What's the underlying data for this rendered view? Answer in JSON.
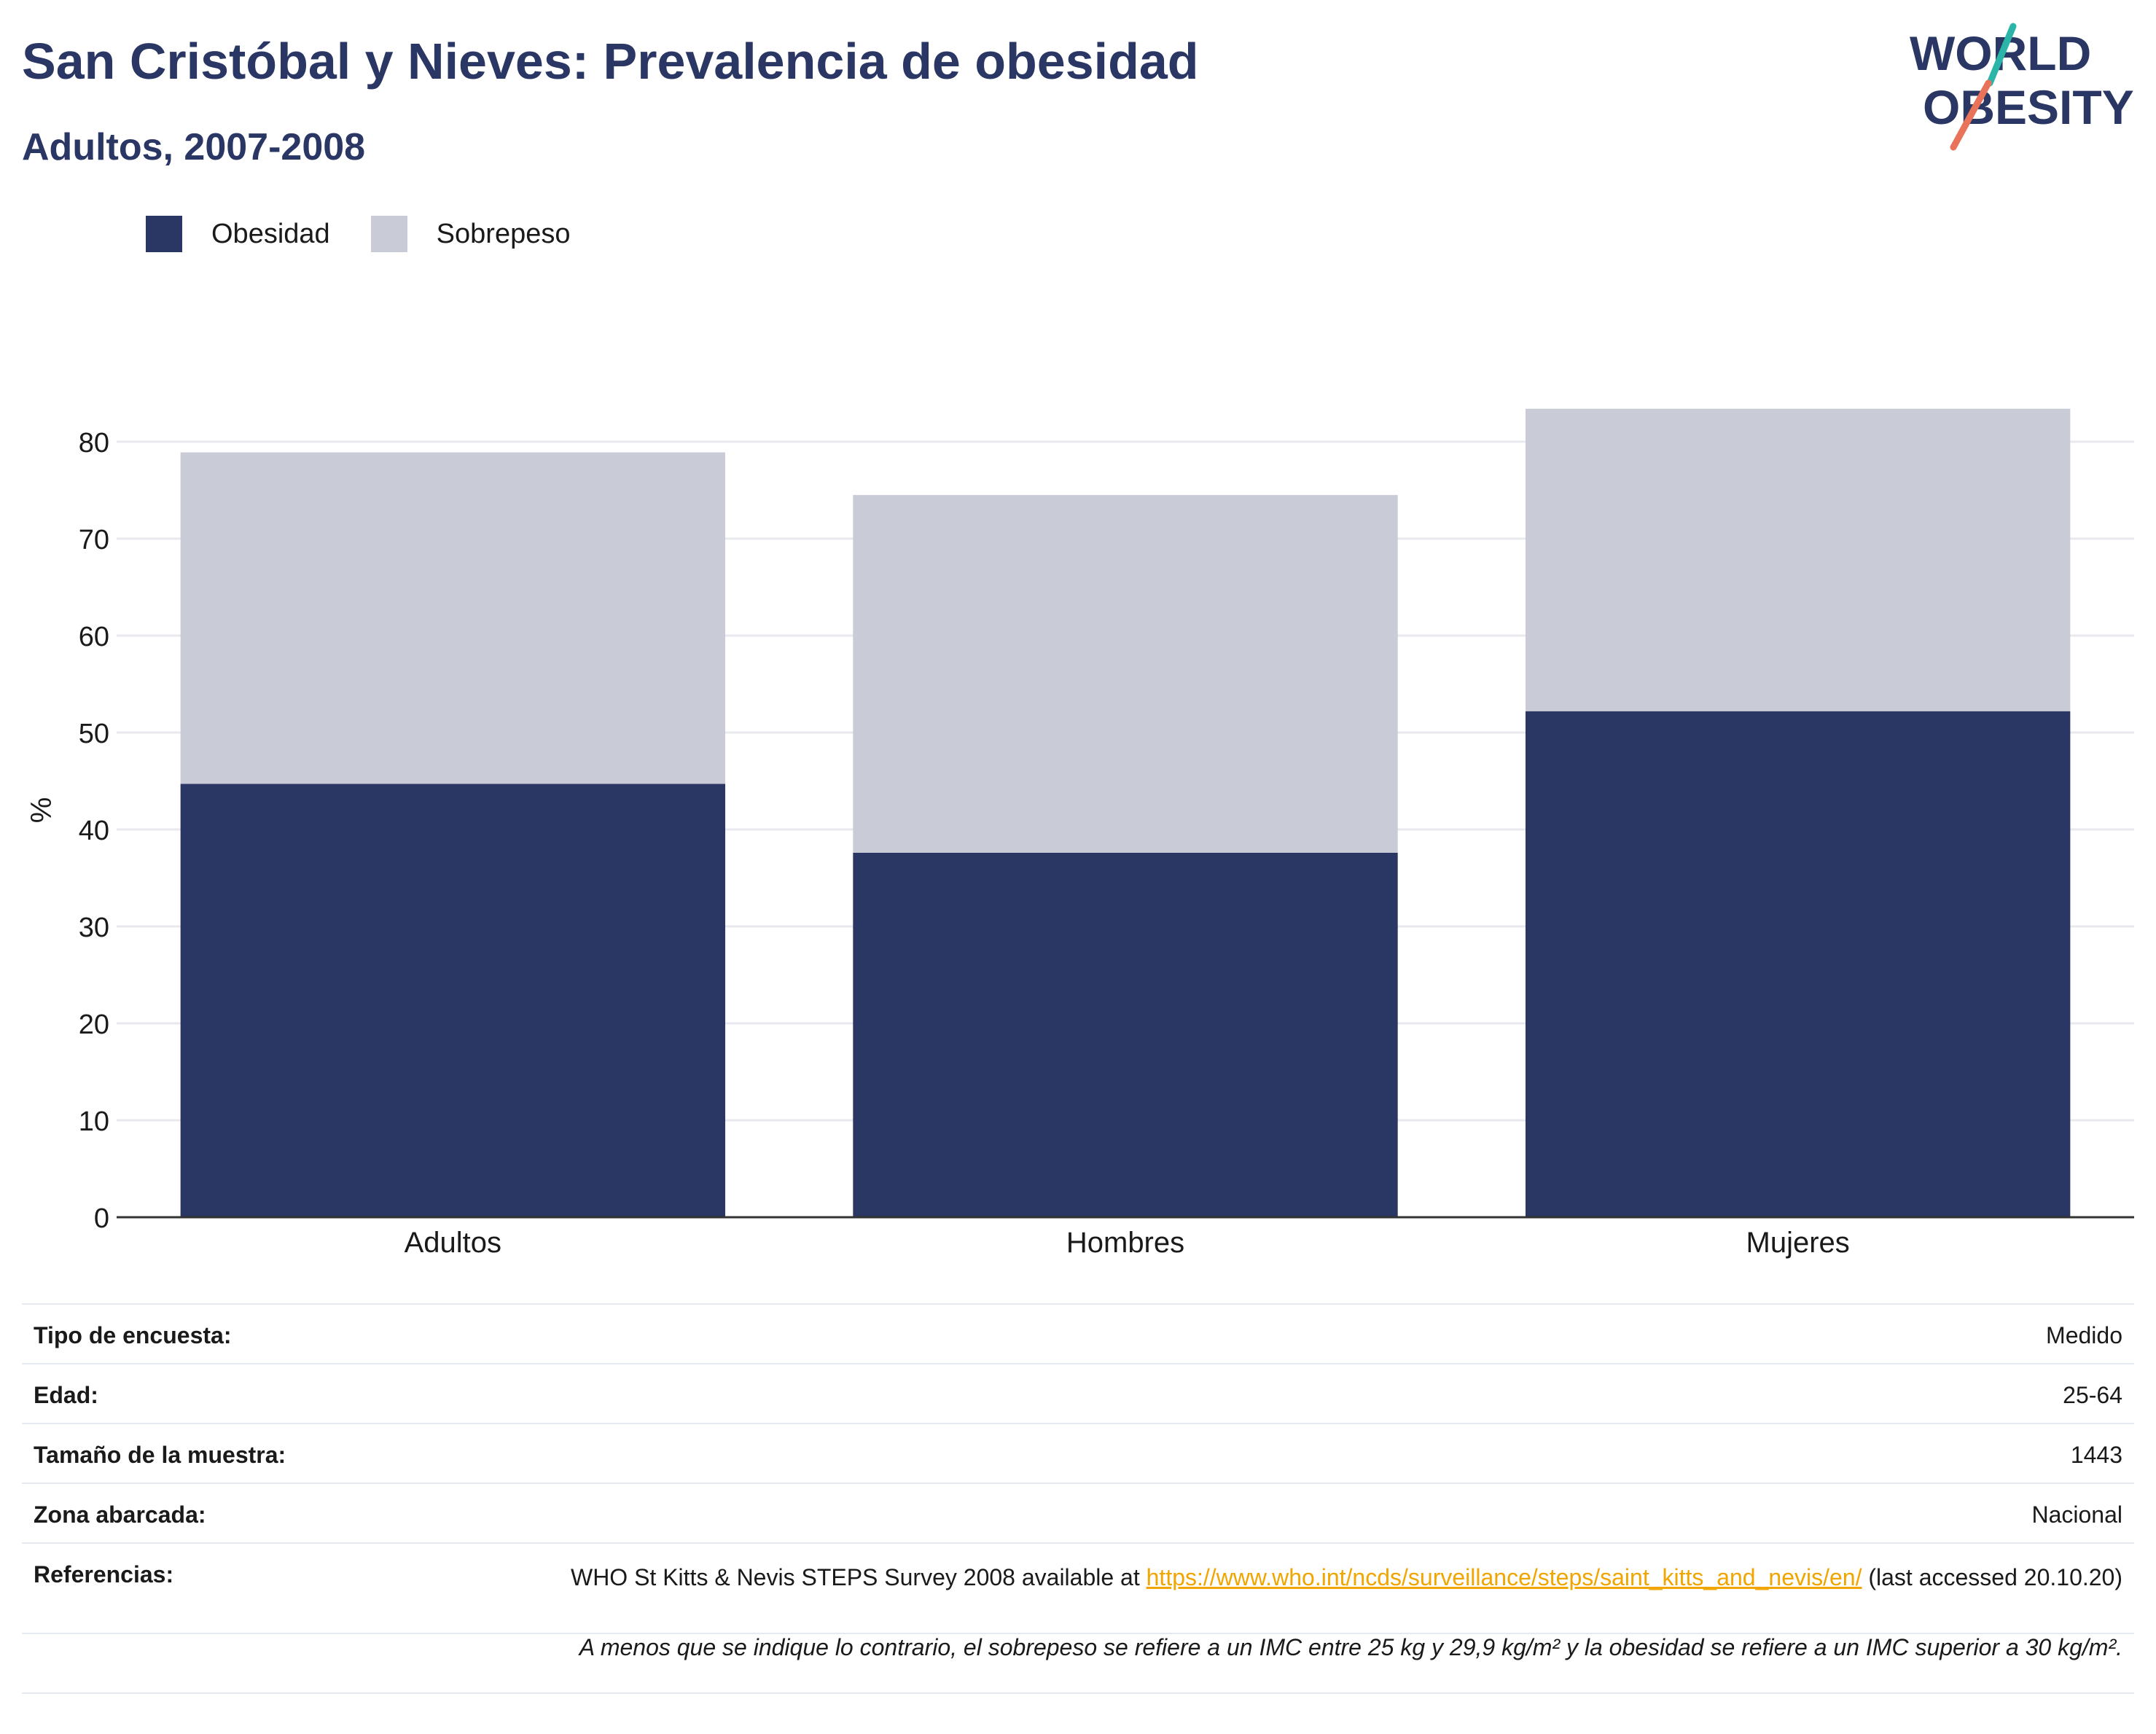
{
  "header": {
    "title": "San Cristóbal y Nieves: Prevalencia de obesidad",
    "subtitle": "Adultos, 2007-2008",
    "logo_line1": "WORLD",
    "logo_line2": "OBESITY"
  },
  "legend": {
    "obesity_label": "Obesidad",
    "overweight_label": "Sobrepeso"
  },
  "colors": {
    "obesity": "#2a3663",
    "overweight": "#c9cbd6",
    "link": "#f0a500",
    "logo_teal": "#2bb5a8",
    "logo_coral": "#e8735a"
  },
  "chart_data": {
    "type": "bar",
    "stacked": true,
    "categories": [
      "Adultos",
      "Hombres",
      "Mujeres"
    ],
    "series": [
      {
        "name": "Obesidad",
        "values": [
          44.7,
          37.6,
          52.2
        ]
      },
      {
        "name": "Sobrepeso",
        "values": [
          34.2,
          36.9,
          31.2
        ]
      }
    ],
    "totals": [
      78.9,
      74.5,
      83.4
    ],
    "ylabel": "%",
    "xlabel": "",
    "ylim": [
      0,
      85
    ],
    "yticks": [
      0,
      10,
      20,
      30,
      40,
      50,
      60,
      70,
      80
    ],
    "grid": true,
    "legend_position": "top-left"
  },
  "info": {
    "survey_type_label": "Tipo de encuesta:",
    "survey_type_value": "Medido",
    "age_label": "Edad:",
    "age_value": "25-64",
    "sample_label": "Tamaño de la muestra:",
    "sample_value": "1443",
    "area_label": "Zona abarcada:",
    "area_value": "Nacional",
    "refs_label": "Referencias:",
    "refs_text_before": "WHO St Kitts & Nevis STEPS Survey 2008 available at",
    "refs_link": "https://www.who.int/ncds/surveillance/steps/saint_kitts_and_nevis/en/",
    "refs_text_after": "(last accessed 20.10.20)",
    "note": "A menos que se indique lo contrario, el sobrepeso se refiere a un IMC entre 25 kg y 29,9 kg/m² y la obesidad se refiere a un IMC superior a 30 kg/m²."
  }
}
